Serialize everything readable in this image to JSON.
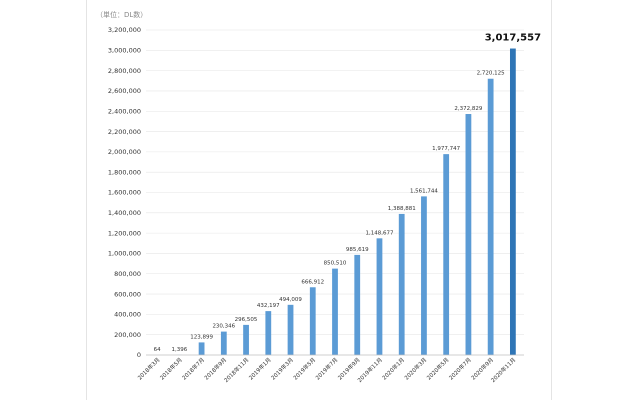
{
  "unit_label": "（単位：DL数）",
  "chart_data": {
    "type": "bar",
    "title": "",
    "xlabel": "",
    "ylabel": "",
    "unit": "（単位：DL数）",
    "ylim": [
      0,
      3200000
    ],
    "ytick_step": 200000,
    "grid": true,
    "legend": "none",
    "colors": {
      "bar": "#5b9bd5",
      "bar_highlight": "#2e75b6",
      "grid": "#e6e6e6",
      "axis": "#bfbfbf"
    },
    "categories": [
      "2018年3月",
      "2018年5月",
      "2018年7月",
      "2018年9月",
      "2018年11月",
      "2019年1月",
      "2019年3月",
      "2019年5月",
      "2019年7月",
      "2019年9月",
      "2019年11月",
      "2020年1月",
      "2020年3月",
      "2020年5月",
      "2020年7月",
      "2020年9月",
      "2020年11月"
    ],
    "values": [
      64,
      1396,
      123899,
      230346,
      296505,
      432197,
      494009,
      666912,
      850510,
      985619,
      1148677,
      1388881,
      1561744,
      1977747,
      2372829,
      2720125,
      3017557
    ],
    "data_labels": [
      "64",
      "1,396",
      "123,899",
      "230,346",
      "296,505",
      "432,197",
      "494,009",
      "666,912",
      "850,510",
      "985,619",
      "1,148,677",
      "1,388,881",
      "1,561,744",
      "1,977,747",
      "2,372,829",
      "2,720,125",
      "3,017,557"
    ],
    "highlight_index": 16
  }
}
